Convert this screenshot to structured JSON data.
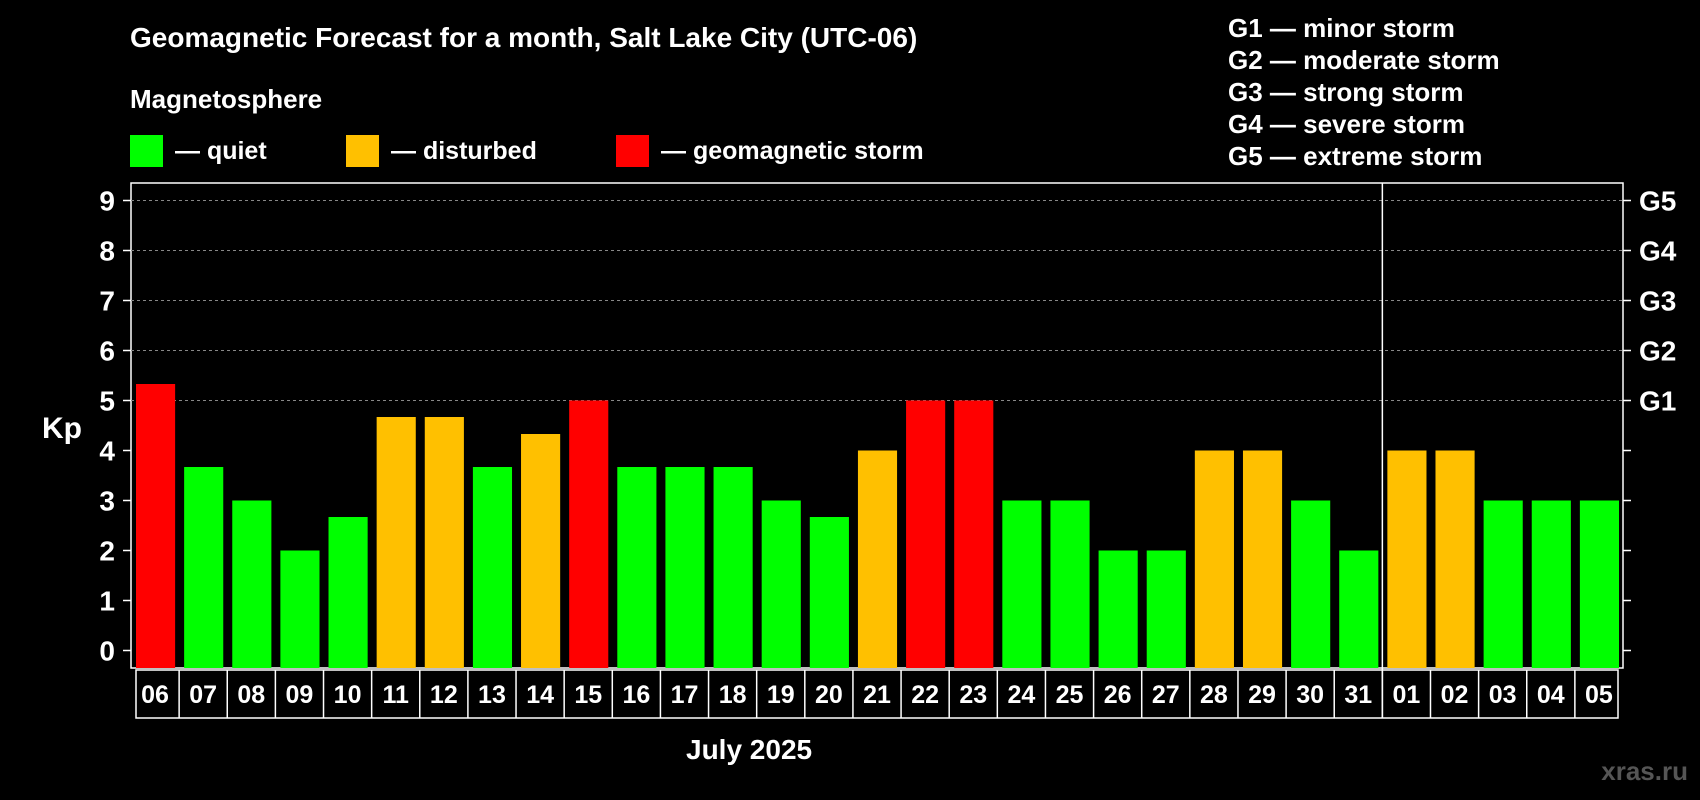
{
  "title": "Geomagnetic Forecast for a month, Salt Lake City (UTC-06)",
  "magnetosphere": {
    "heading": "Magnetosphere",
    "legend": [
      {
        "label": "— quiet",
        "color": "#00ff00"
      },
      {
        "label": "— disturbed",
        "color": "#ffc000"
      },
      {
        "label": "— geomagnetic storm",
        "color": "#ff0000"
      }
    ]
  },
  "storm_scale": [
    "G1 — minor storm",
    "G2 — moderate storm",
    "G3 — strong storm",
    "G4 — severe storm",
    "G5 — extreme storm"
  ],
  "month_label": "July 2025",
  "watermark": "xras.ru",
  "chart_data": {
    "type": "bar",
    "ylabel": "Kp",
    "ylim": [
      -0.35,
      9.35
    ],
    "yticks": [
      0,
      1,
      2,
      3,
      4,
      5,
      6,
      7,
      8,
      9
    ],
    "right_axis_labels": [
      {
        "value": 5,
        "label": "G1"
      },
      {
        "value": 6,
        "label": "G2"
      },
      {
        "value": 7,
        "label": "G3"
      },
      {
        "value": 8,
        "label": "G4"
      },
      {
        "value": 9,
        "label": "G5"
      }
    ],
    "gridlines": [
      5,
      6,
      7,
      8,
      9
    ],
    "month_separator_after": "31",
    "categories": [
      "06",
      "07",
      "08",
      "09",
      "10",
      "11",
      "12",
      "13",
      "14",
      "15",
      "16",
      "17",
      "18",
      "19",
      "20",
      "21",
      "22",
      "23",
      "24",
      "25",
      "26",
      "27",
      "28",
      "29",
      "30",
      "31",
      "01",
      "02",
      "03",
      "04",
      "05"
    ],
    "values": [
      5.33,
      3.67,
      3.0,
      2.0,
      2.67,
      4.67,
      4.67,
      3.67,
      4.33,
      5.0,
      3.67,
      3.67,
      3.67,
      3.0,
      2.67,
      4.0,
      5.0,
      5.0,
      3.0,
      3.0,
      2.0,
      2.0,
      4.0,
      4.0,
      3.0,
      2.0,
      4.0,
      4.0,
      3.0,
      3.0,
      3.0
    ],
    "levels": [
      "storm",
      "quiet",
      "quiet",
      "quiet",
      "quiet",
      "disturbed",
      "disturbed",
      "quiet",
      "disturbed",
      "storm",
      "quiet",
      "quiet",
      "quiet",
      "quiet",
      "quiet",
      "disturbed",
      "storm",
      "storm",
      "quiet",
      "quiet",
      "quiet",
      "quiet",
      "disturbed",
      "disturbed",
      "quiet",
      "quiet",
      "disturbed",
      "disturbed",
      "quiet",
      "quiet",
      "quiet"
    ],
    "colors": {
      "quiet": "#00ff00",
      "disturbed": "#ffc000",
      "storm": "#ff0000"
    }
  }
}
